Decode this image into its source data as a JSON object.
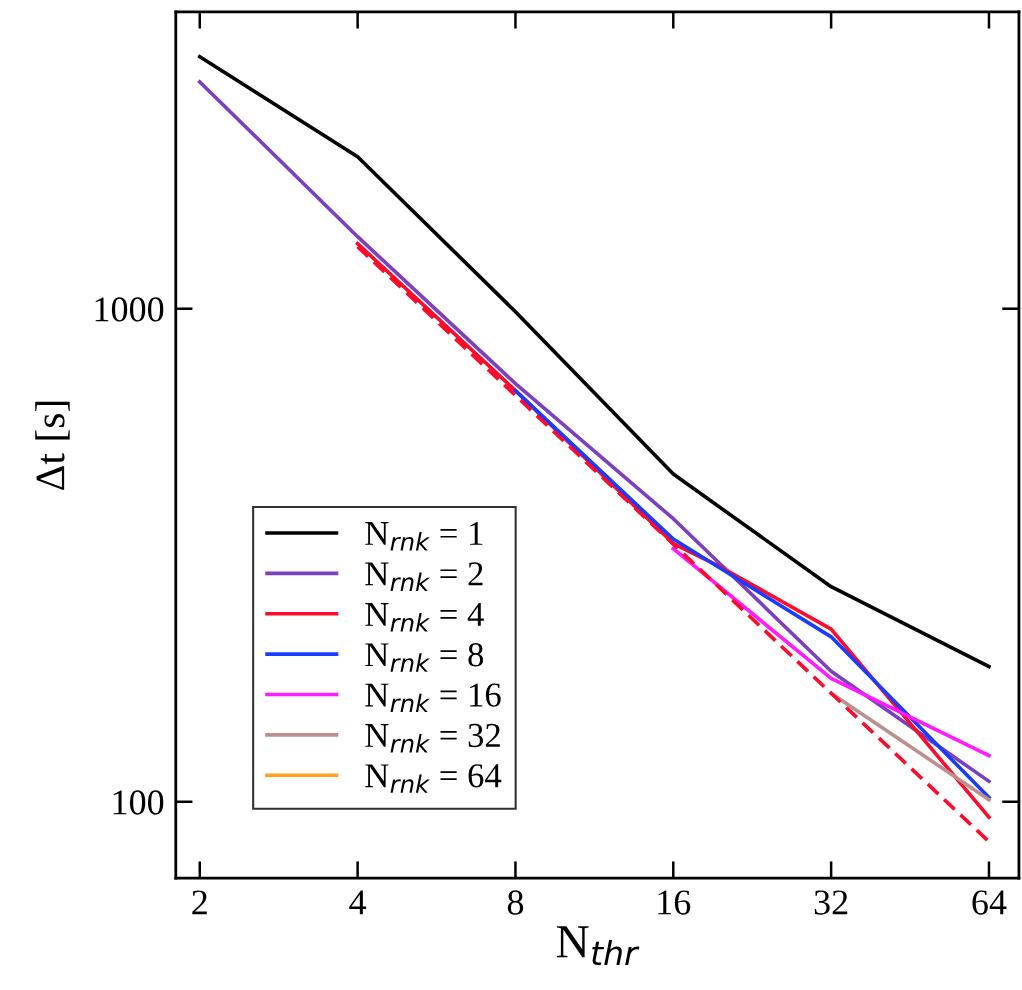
{
  "chart_data": {
    "type": "line",
    "xlabel": "N$_{thr}$",
    "ylabel": "Δt [s]",
    "log": "xy",
    "x": [
      2,
      4,
      8,
      16,
      32,
      64
    ],
    "series": [
      {
        "name": "N$_{rnk}$ = 1",
        "color": "#000000",
        "values": [
          3245,
          2034,
          986,
          462,
          273,
          188
        ]
      },
      {
        "name": "N$_{rnk}$ = 2",
        "color": "#7b3fbf",
        "values": [
          2884,
          1400,
          705,
          375,
          184,
          110
        ]
      },
      {
        "name": "N$_{rnk}$ = 4",
        "color": "#ff0a2a",
        "x": [
          4,
          8,
          16,
          19.5,
          32,
          64
        ],
        "values": [
          1355,
          682,
          334,
          301,
          224,
          93
        ]
      },
      {
        "name": "N$_{rnk}$ = 8",
        "color": "#1a3cff",
        "x": [
          8,
          16,
          32,
          64
        ],
        "values": [
          682,
          341,
          216,
          102
        ]
      },
      {
        "name": "N$_{rnk}$ = 16",
        "color": "#ff1aff",
        "x": [
          16,
          32,
          64
        ],
        "values": [
          326,
          178,
          124
        ]
      },
      {
        "name": "N$_{rnk}$ = 32",
        "color": "#bc8f8f",
        "x": [
          32,
          64
        ],
        "values": [
          166,
          101
        ]
      },
      {
        "name": "N$_{rnk}$ = 64",
        "color": "#ffa020",
        "values": [
          null,
          null,
          null,
          null,
          null,
          null
        ]
      },
      {
        "color": "#ff0a2a",
        "line_style": "dashed",
        "x": [
          4,
          8,
          16,
          32,
          64
        ],
        "values": [
          1336,
          667,
          333,
          166,
          83
        ]
      }
    ],
    "xlim": [
      1.8,
      73
    ],
    "ylim": [
      70,
      4000
    ],
    "xticks": [
      2,
      4,
      8,
      16,
      32,
      64
    ],
    "yticks": [
      100,
      1000
    ],
    "legend": "lower left",
    "grid": false
  }
}
